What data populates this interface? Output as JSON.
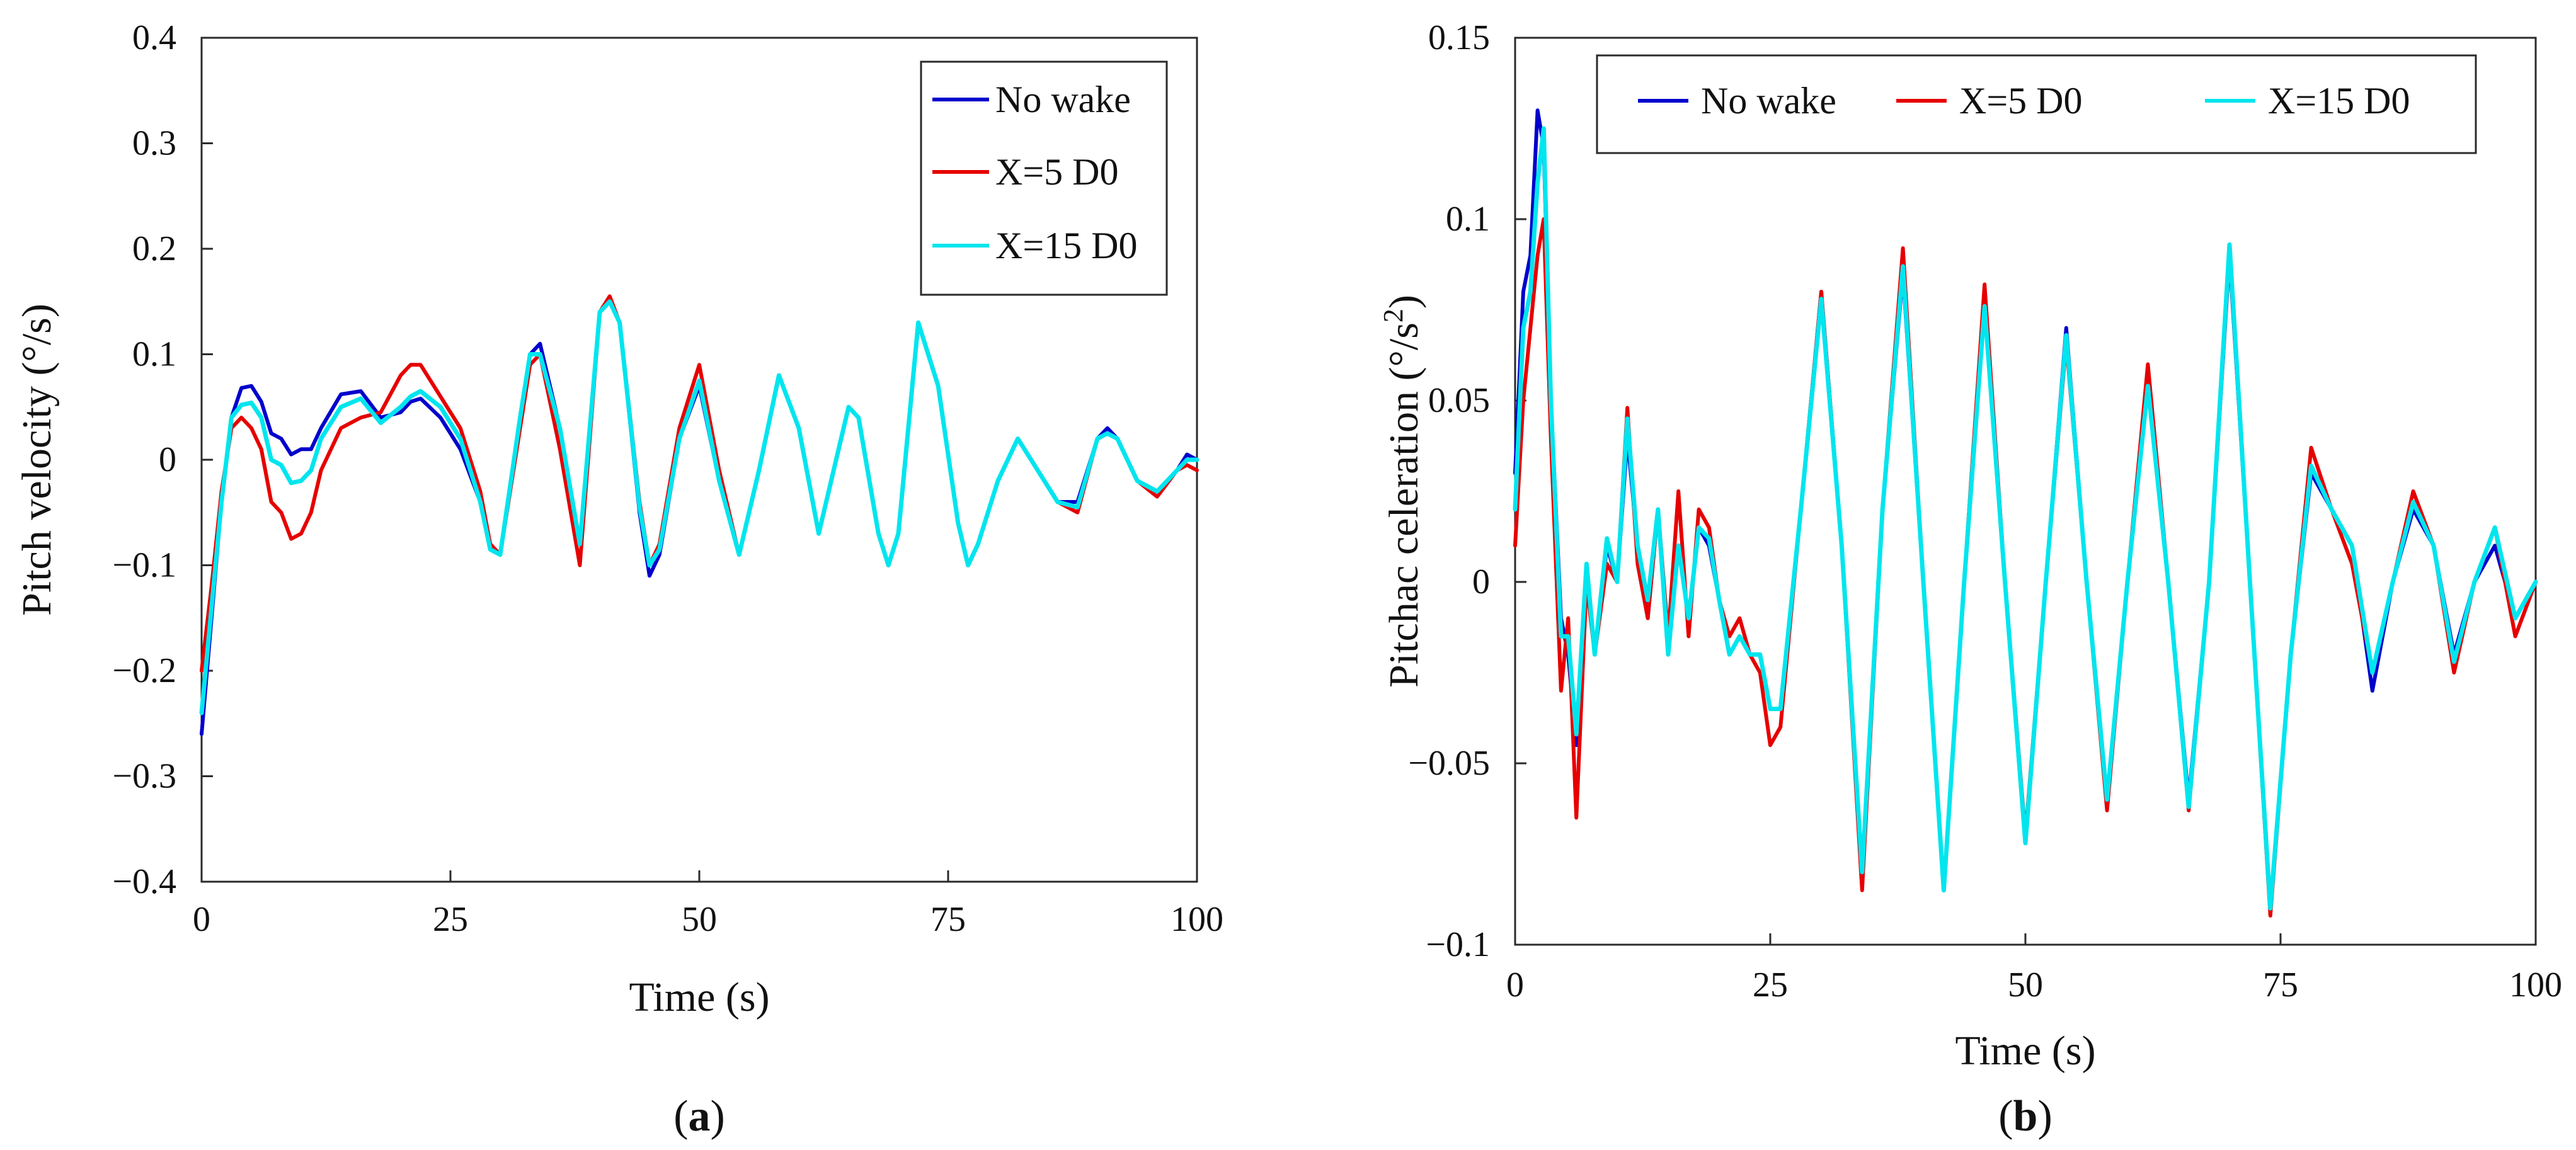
{
  "colors": {
    "no_wake": "#0000cc",
    "x5": "#e60000",
    "x15": "#00e5ee",
    "axis": "#2b2b2b",
    "text": "#111111"
  },
  "chart_data": [
    {
      "type": "line",
      "panel": "a",
      "caption": "(a)",
      "caption_letter": "a",
      "xlabel": "Time (s)",
      "ylabel": "Pitch velocity (°/s)",
      "xlim": [
        0,
        100
      ],
      "ylim": [
        -0.4,
        0.4
      ],
      "xticks": [
        0,
        25,
        50,
        75,
        100
      ],
      "yticks": [
        -0.4,
        -0.3,
        -0.2,
        -0.1,
        0,
        0.1,
        0.2,
        0.3,
        0.4
      ],
      "ytick_labels": [
        "−0.4",
        "−0.3",
        "−0.2",
        "−0.1",
        "0",
        "0.1",
        "0.2",
        "0.3",
        "0.4"
      ],
      "grid": false,
      "legend_position": "top-right",
      "series": [
        {
          "name": "No wake",
          "color_key": "no_wake",
          "x": [
            0,
            1,
            2,
            3,
            4,
            5,
            6,
            7,
            8,
            9,
            10,
            11,
            12,
            14,
            16,
            18,
            20,
            21,
            22,
            24,
            26,
            28,
            29,
            30,
            32,
            33,
            34,
            36,
            38,
            40,
            41,
            42,
            44,
            45,
            46,
            48,
            50,
            52,
            54,
            56,
            58,
            60,
            62,
            64,
            65,
            66,
            68,
            69,
            70,
            72,
            74,
            76,
            77,
            78,
            80,
            82,
            84,
            86,
            88,
            90,
            91,
            92,
            94,
            96,
            98,
            99,
            100
          ],
          "y": [
            -0.26,
            -0.15,
            -0.04,
            0.04,
            0.068,
            0.07,
            0.055,
            0.025,
            0.02,
            0.005,
            0.01,
            0.01,
            0.03,
            0.062,
            0.065,
            0.04,
            0.045,
            0.055,
            0.058,
            0.04,
            0.01,
            -0.04,
            -0.08,
            -0.09,
            0.04,
            0.1,
            0.11,
            0.03,
            -0.08,
            0.14,
            0.15,
            0.13,
            -0.05,
            -0.11,
            -0.09,
            0.02,
            0.07,
            -0.02,
            -0.09,
            -0.01,
            0.08,
            0.03,
            -0.07,
            0.01,
            0.05,
            0.04,
            -0.07,
            -0.1,
            -0.07,
            0.13,
            0.07,
            -0.06,
            -0.1,
            -0.08,
            -0.02,
            0.02,
            -0.01,
            -0.04,
            -0.04,
            0.02,
            0.03,
            0.02,
            -0.02,
            -0.03,
            -0.01,
            0.005,
            0.0
          ]
        },
        {
          "name": "X=5 D0",
          "color_key": "x5",
          "x": [
            0,
            1,
            2,
            3,
            4,
            5,
            6,
            7,
            8,
            9,
            10,
            11,
            12,
            14,
            16,
            18,
            20,
            21,
            22,
            24,
            26,
            28,
            29,
            30,
            32,
            33,
            34,
            36,
            38,
            40,
            41,
            42,
            44,
            45,
            46,
            48,
            50,
            52,
            54,
            56,
            58,
            60,
            62,
            64,
            65,
            66,
            68,
            69,
            70,
            72,
            74,
            76,
            77,
            78,
            80,
            82,
            84,
            86,
            88,
            90,
            91,
            92,
            94,
            96,
            98,
            99,
            100
          ],
          "y": [
            -0.2,
            -0.12,
            -0.03,
            0.03,
            0.04,
            0.03,
            0.01,
            -0.04,
            -0.05,
            -0.075,
            -0.07,
            -0.05,
            -0.01,
            0.03,
            0.04,
            0.045,
            0.08,
            0.09,
            0.09,
            0.06,
            0.03,
            -0.03,
            -0.08,
            -0.09,
            0.03,
            0.09,
            0.1,
            0.01,
            -0.1,
            0.14,
            0.155,
            0.13,
            -0.04,
            -0.1,
            -0.08,
            0.03,
            0.09,
            -0.01,
            -0.09,
            -0.01,
            0.08,
            0.03,
            -0.07,
            0.01,
            0.05,
            0.04,
            -0.07,
            -0.1,
            -0.07,
            0.13,
            0.07,
            -0.06,
            -0.1,
            -0.08,
            -0.02,
            0.02,
            -0.01,
            -0.04,
            -0.05,
            0.02,
            0.025,
            0.02,
            -0.02,
            -0.035,
            -0.01,
            -0.005,
            -0.01
          ]
        },
        {
          "name": "X=15 D0",
          "color_key": "x15",
          "x": [
            0,
            1,
            2,
            3,
            4,
            5,
            6,
            7,
            8,
            9,
            10,
            11,
            12,
            14,
            16,
            18,
            20,
            21,
            22,
            24,
            26,
            28,
            29,
            30,
            32,
            33,
            34,
            36,
            38,
            40,
            41,
            42,
            44,
            45,
            46,
            48,
            50,
            52,
            54,
            56,
            58,
            60,
            62,
            64,
            65,
            66,
            68,
            69,
            70,
            72,
            74,
            76,
            77,
            78,
            80,
            82,
            84,
            86,
            88,
            90,
            91,
            92,
            94,
            96,
            98,
            99,
            100
          ],
          "y": [
            -0.24,
            -0.14,
            -0.04,
            0.04,
            0.052,
            0.054,
            0.04,
            0.0,
            -0.005,
            -0.022,
            -0.02,
            -0.01,
            0.02,
            0.05,
            0.058,
            0.035,
            0.05,
            0.06,
            0.065,
            0.05,
            0.02,
            -0.04,
            -0.085,
            -0.09,
            0.04,
            0.1,
            0.1,
            0.03,
            -0.08,
            0.14,
            0.15,
            0.13,
            -0.045,
            -0.1,
            -0.085,
            0.02,
            0.075,
            -0.02,
            -0.09,
            -0.01,
            0.08,
            0.03,
            -0.07,
            0.01,
            0.05,
            0.04,
            -0.07,
            -0.1,
            -0.07,
            0.13,
            0.07,
            -0.06,
            -0.1,
            -0.08,
            -0.02,
            0.02,
            -0.01,
            -0.04,
            -0.045,
            0.02,
            0.025,
            0.02,
            -0.02,
            -0.03,
            -0.01,
            0.0,
            0.0
          ]
        }
      ]
    },
    {
      "type": "line",
      "panel": "b",
      "caption": "(b)",
      "caption_letter": "b",
      "xlabel": "Time (s)",
      "ylabel": "Pitchac celeration (°/s²)",
      "ylabel_main": "Pitchac celeration (°/s",
      "ylabel_sup": "2",
      "ylabel_end": ")",
      "xlim": [
        0,
        100
      ],
      "ylim": [
        -0.1,
        0.15
      ],
      "xticks": [
        0,
        25,
        50,
        75,
        100
      ],
      "yticks": [
        -0.1,
        -0.05,
        0,
        0.05,
        0.1,
        0.15
      ],
      "ytick_labels": [
        "−0.1",
        "−0.05",
        "0",
        "0.05",
        "0.1",
        "0.15"
      ],
      "grid": false,
      "legend_position": "top",
      "series": [
        {
          "name": "No wake",
          "color_key": "no_wake",
          "x": [
            0,
            0.8,
            1.5,
            2.2,
            2.8,
            3.5,
            4.5,
            5.2,
            6,
            7,
            7.8,
            9,
            10,
            11,
            12,
            13,
            14,
            15,
            16,
            17,
            18,
            19,
            20,
            21,
            22,
            23,
            24,
            25,
            26,
            28,
            30,
            32,
            34,
            36,
            38,
            40,
            42,
            44,
            46,
            48,
            50,
            52,
            54,
            56,
            58,
            60,
            62,
            64,
            66,
            68,
            70,
            72,
            74,
            76,
            78,
            80,
            82,
            84,
            86,
            88,
            90,
            92,
            94,
            96,
            98,
            100
          ],
          "y": [
            0.03,
            0.08,
            0.09,
            0.13,
            0.12,
            0.05,
            -0.01,
            -0.02,
            -0.045,
            0.005,
            -0.02,
            0.01,
            0.0,
            0.04,
            0.01,
            -0.01,
            0.02,
            -0.02,
            0.01,
            -0.01,
            0.015,
            0.01,
            -0.005,
            -0.02,
            -0.015,
            -0.02,
            -0.02,
            -0.035,
            -0.035,
            0.02,
            0.08,
            0.01,
            -0.08,
            0.02,
            0.085,
            0.0,
            -0.085,
            0.0,
            0.08,
            0.0,
            -0.072,
            0.0,
            0.07,
            0.0,
            -0.06,
            0.0,
            0.055,
            0.0,
            -0.06,
            0.0,
            0.09,
            0.0,
            -0.09,
            -0.02,
            0.03,
            0.02,
            0.01,
            -0.03,
            0.0,
            0.02,
            0.01,
            -0.02,
            0.0,
            0.01,
            -0.01,
            0.0
          ]
        },
        {
          "name": "X=5 D0",
          "color_key": "x5",
          "x": [
            0,
            0.8,
            1.5,
            2.2,
            2.8,
            3.5,
            4.5,
            5.2,
            6,
            7,
            7.8,
            9,
            10,
            11,
            12,
            13,
            14,
            15,
            16,
            17,
            18,
            19,
            20,
            21,
            22,
            23,
            24,
            25,
            26,
            28,
            30,
            32,
            34,
            36,
            38,
            40,
            42,
            44,
            46,
            48,
            50,
            52,
            54,
            56,
            58,
            60,
            62,
            64,
            66,
            68,
            70,
            72,
            74,
            76,
            78,
            80,
            82,
            84,
            86,
            88,
            90,
            92,
            94,
            96,
            98,
            100
          ],
          "y": [
            0.01,
            0.05,
            0.07,
            0.09,
            0.1,
            0.04,
            -0.03,
            -0.01,
            -0.065,
            0.0,
            -0.02,
            0.005,
            0.0,
            0.048,
            0.005,
            -0.01,
            0.02,
            -0.015,
            0.025,
            -0.015,
            0.02,
            0.015,
            -0.005,
            -0.015,
            -0.01,
            -0.02,
            -0.025,
            -0.045,
            -0.04,
            0.02,
            0.08,
            0.01,
            -0.085,
            0.02,
            0.092,
            0.0,
            -0.085,
            0.0,
            0.082,
            0.0,
            -0.07,
            0.0,
            0.066,
            0.0,
            -0.063,
            0.0,
            0.06,
            0.0,
            -0.063,
            0.0,
            0.091,
            0.0,
            -0.092,
            -0.02,
            0.037,
            0.02,
            0.005,
            -0.025,
            0.0,
            0.025,
            0.01,
            -0.025,
            0.0,
            0.015,
            -0.015,
            0.0
          ]
        },
        {
          "name": "X=15 D0",
          "color_key": "x15",
          "x": [
            0,
            0.8,
            1.5,
            2.2,
            2.8,
            3.5,
            4.5,
            5.2,
            6,
            7,
            7.8,
            9,
            10,
            11,
            12,
            13,
            14,
            15,
            16,
            17,
            18,
            19,
            20,
            21,
            22,
            23,
            24,
            25,
            26,
            28,
            30,
            32,
            34,
            36,
            38,
            40,
            42,
            44,
            46,
            48,
            50,
            52,
            54,
            56,
            58,
            60,
            62,
            64,
            66,
            68,
            70,
            72,
            74,
            76,
            78,
            80,
            82,
            84,
            86,
            88,
            90,
            92,
            94,
            96,
            98,
            100
          ],
          "y": [
            0.02,
            0.07,
            0.08,
            0.11,
            0.125,
            0.05,
            -0.015,
            -0.015,
            -0.042,
            0.005,
            -0.02,
            0.012,
            0.0,
            0.045,
            0.01,
            -0.005,
            0.02,
            -0.02,
            0.01,
            -0.01,
            0.015,
            0.012,
            -0.005,
            -0.02,
            -0.015,
            -0.02,
            -0.02,
            -0.035,
            -0.035,
            0.02,
            0.078,
            0.01,
            -0.08,
            0.02,
            0.087,
            0.0,
            -0.085,
            0.0,
            0.076,
            0.0,
            -0.072,
            0.0,
            0.068,
            0.0,
            -0.06,
            0.0,
            0.054,
            0.0,
            -0.062,
            0.0,
            0.093,
            0.0,
            -0.09,
            -0.02,
            0.032,
            0.02,
            0.01,
            -0.025,
            0.0,
            0.022,
            0.01,
            -0.022,
            0.0,
            0.015,
            -0.01,
            0.0
          ]
        }
      ]
    }
  ]
}
